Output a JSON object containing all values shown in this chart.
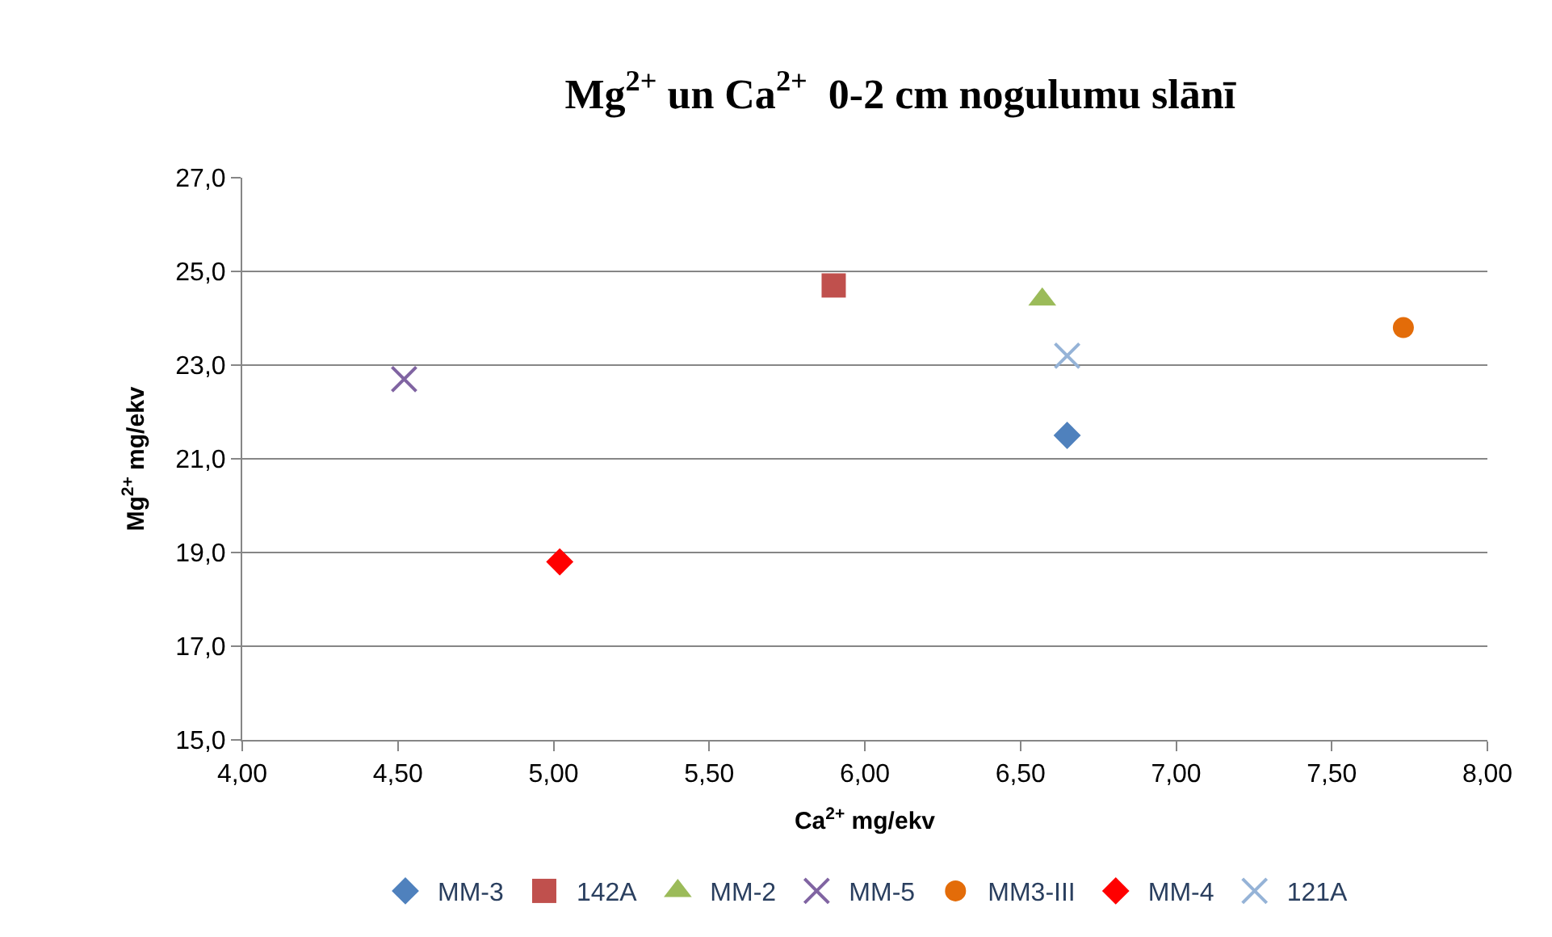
{
  "chart_data": {
    "type": "scatter",
    "title": "Mg$^{2+}$ un Ca$^{2+}$  0-2 cm nogulumu slānī",
    "xlabel": "Ca$^{2+}$ mg/ekv",
    "ylabel": "Mg$^{2+}$ mg/ekv",
    "series": [
      {
        "name": "MM-3",
        "color": "#4f81bd",
        "marker": "diamond",
        "x": [
          6.65
        ],
        "values": [
          21.5
        ]
      },
      {
        "name": "142A",
        "color": "#c0504d",
        "marker": "square",
        "x": [
          5.9
        ],
        "values": [
          24.7
        ]
      },
      {
        "name": "MM-2",
        "color": "#9bbb59",
        "marker": "triangle",
        "x": [
          6.57
        ],
        "values": [
          24.4
        ]
      },
      {
        "name": "MM-5",
        "color": "#8064a2",
        "marker": "cross",
        "x": [
          4.52
        ],
        "values": [
          22.7
        ]
      },
      {
        "name": "MM3-III",
        "color": "#e36c09",
        "marker": "circle",
        "x": [
          7.73
        ],
        "values": [
          23.8
        ]
      },
      {
        "name": "MM-4",
        "color": "#ff0000",
        "marker": "diamond",
        "x": [
          5.02
        ],
        "values": [
          18.8
        ]
      },
      {
        "name": "121A",
        "color": "#95b3d7",
        "marker": "cross",
        "x": [
          6.65
        ],
        "values": [
          23.2
        ]
      }
    ],
    "xlim": [
      4,
      8
    ],
    "xticks": [
      {
        "value": 4,
        "label": "4,00"
      },
      {
        "value": 4.5,
        "label": "4,50"
      },
      {
        "value": 5,
        "label": "5,00"
      },
      {
        "value": 5.5,
        "label": "5,50"
      },
      {
        "value": 6,
        "label": "6,00"
      },
      {
        "value": 6.5,
        "label": "6,50"
      },
      {
        "value": 7,
        "label": "7,00"
      },
      {
        "value": 7.5,
        "label": "7,50"
      },
      {
        "value": 8,
        "label": "8,00"
      }
    ],
    "ylim": [
      15,
      27
    ],
    "yticks": [
      {
        "value": 15,
        "label": "15,0"
      },
      {
        "value": 17,
        "label": "17,0"
      },
      {
        "value": 19,
        "label": "19,0"
      },
      {
        "value": 21,
        "label": "21,0"
      },
      {
        "value": 23,
        "label": "23,0"
      },
      {
        "value": 25,
        "label": "25,0"
      },
      {
        "value": 27,
        "label": "27,0"
      }
    ],
    "grid": "y",
    "legend": "bottom"
  }
}
